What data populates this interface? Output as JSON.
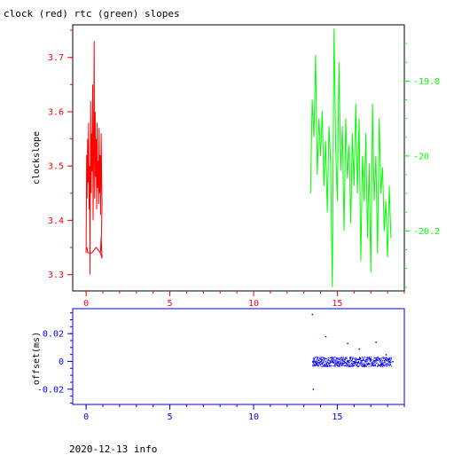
{
  "chart_data": [
    {
      "type": "line",
      "title": "clock (red) rtc (green) slopes",
      "ylabel": "clockslope",
      "xlim": [
        -0.8,
        19.0
      ],
      "ylim": [
        3.27,
        3.76
      ],
      "y2lim": [
        -20.36,
        -19.65
      ],
      "x_ticks": [
        "0",
        "5",
        "10",
        "15"
      ],
      "y_ticks": [
        "3.3",
        "3.4",
        "3.5",
        "3.6",
        "3.7"
      ],
      "y2_ticks": [
        "-19.8",
        "-20",
        "-20.2"
      ],
      "colors": {
        "clock": "#ff0000",
        "rtc": "#00ff00",
        "frame": "#000000"
      },
      "series": [
        {
          "axis": "left",
          "color": "#ff0000",
          "x": [
            0.0,
            0.03,
            0.06,
            0.09,
            0.12,
            0.15,
            0.18,
            0.21,
            0.24,
            0.27,
            0.3,
            0.33,
            0.36,
            0.39,
            0.42,
            0.45,
            0.48,
            0.51,
            0.54,
            0.57,
            0.6,
            0.63,
            0.66,
            0.69,
            0.72,
            0.75,
            0.78,
            0.81,
            0.84,
            0.87,
            0.9,
            0.93,
            0.95,
            0.9,
            0.85,
            0.9,
            0.95,
            0.85,
            0.6,
            0.35,
            0.1,
            0.05
          ],
          "y": [
            3.34,
            3.52,
            3.44,
            3.55,
            3.47,
            3.58,
            3.42,
            3.5,
            3.3,
            3.62,
            3.45,
            3.56,
            3.49,
            3.65,
            3.4,
            3.53,
            3.73,
            3.44,
            3.6,
            3.48,
            3.55,
            3.42,
            3.58,
            3.46,
            3.51,
            3.43,
            3.57,
            3.45,
            3.52,
            3.41,
            3.56,
            3.47,
            3.43,
            3.35,
            3.34,
            3.37,
            3.33,
            3.34,
            3.35,
            3.34,
            3.34,
            3.35
          ]
        },
        {
          "axis": "right",
          "color": "#00ff00",
          "x": [
            13.4,
            13.5,
            13.6,
            13.7,
            13.8,
            13.9,
            14.0,
            14.1,
            14.2,
            14.3,
            14.4,
            14.5,
            14.6,
            14.7,
            14.8,
            14.9,
            15.0,
            15.1,
            15.2,
            15.3,
            15.4,
            15.5,
            15.6,
            15.7,
            15.8,
            15.9,
            16.0,
            16.1,
            16.2,
            16.3,
            16.4,
            16.5,
            16.6,
            16.7,
            16.8,
            16.9,
            17.0,
            17.1,
            17.2,
            17.3,
            17.4,
            17.5,
            17.6,
            17.7,
            17.8,
            17.9,
            18.0,
            18.1,
            18.2
          ],
          "y": [
            -20.1,
            -19.85,
            -19.95,
            -19.73,
            -20.05,
            -19.9,
            -20.0,
            -19.88,
            -20.08,
            -19.96,
            -20.15,
            -19.92,
            -20.02,
            -20.35,
            -19.66,
            -19.98,
            -20.12,
            -19.75,
            -20.04,
            -19.92,
            -20.2,
            -19.9,
            -20.06,
            -19.97,
            -20.18,
            -19.94,
            -20.08,
            -19.86,
            -20.1,
            -19.9,
            -20.28,
            -20.0,
            -20.12,
            -19.94,
            -20.22,
            -20.02,
            -20.31,
            -19.86,
            -20.12,
            -20.0,
            -20.26,
            -19.9,
            -20.1,
            -20.03,
            -20.2,
            -20.12,
            -20.27,
            -20.08,
            -20.22
          ]
        }
      ]
    },
    {
      "type": "scatter",
      "ylabel": "offset(ms)",
      "xlim": [
        -0.8,
        19.0
      ],
      "ylim": [
        -0.031,
        0.038
      ],
      "x_ticks": [
        "0",
        "5",
        "10",
        "15"
      ],
      "y_ticks": [
        "0.02",
        "0",
        "-0.02"
      ],
      "colors": {
        "points": "#0000ff",
        "axis_text": "#0000ff"
      },
      "series": [
        {
          "color": "#0000ff",
          "x": [
            13.5,
            13.55,
            13.6,
            13.7,
            13.8,
            14.0,
            14.3,
            14.6,
            15.0,
            15.3,
            15.6,
            15.9,
            16.0,
            16.3,
            16.6,
            16.9,
            17.0,
            17.3,
            17.6,
            17.9,
            18.1,
            18.3
          ],
          "y": [
            0.034,
            -0.02,
            0.002,
            -0.001,
            0.003,
            0.0,
            0.018,
            -0.003,
            0.002,
            -0.001,
            0.013,
            0.002,
            0.0,
            0.009,
            -0.003,
            0.003,
            0.001,
            0.014,
            -0.002,
            0.005,
            0.0,
            0.0
          ]
        }
      ]
    }
  ],
  "footer": "2020-12-13 info"
}
